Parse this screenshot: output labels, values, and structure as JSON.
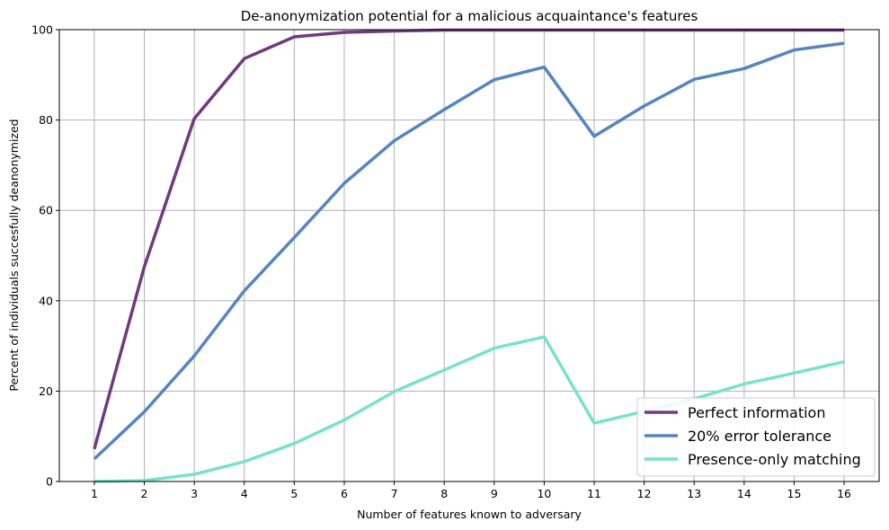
{
  "chart_data": {
    "type": "line",
    "title": "De-anonymization potential for a malicious acquaintance's features",
    "xlabel": "Number of features known to adversary",
    "ylabel": "Percent of individuals succesfully deanonymized",
    "x": [
      1,
      2,
      3,
      4,
      5,
      6,
      7,
      8,
      9,
      10,
      11,
      12,
      13,
      14,
      15,
      16
    ],
    "xlim": [
      0.3,
      16.7
    ],
    "ylim": [
      0,
      100
    ],
    "yticks": [
      0,
      20,
      40,
      60,
      80,
      100
    ],
    "grid": true,
    "legend_position": "lower-right",
    "series": [
      {
        "name": "Perfect information",
        "color": "#6f3a7e",
        "values": [
          7.2,
          47.5,
          80.3,
          93.6,
          98.4,
          99.4,
          99.7,
          99.9,
          99.9,
          99.9,
          99.9,
          99.9,
          99.9,
          99.9,
          99.9,
          99.9
        ]
      },
      {
        "name": "20% error tolerance",
        "color": "#5585c0",
        "values": [
          5.0,
          15.4,
          27.8,
          42.2,
          54.0,
          66.0,
          75.4,
          82.3,
          88.9,
          91.7,
          76.4,
          83.1,
          89.0,
          91.4,
          95.5,
          97.0
        ]
      },
      {
        "name": "Presence-only matching",
        "color": "#78e2c9",
        "values": [
          0.0,
          0.2,
          1.6,
          4.4,
          8.4,
          13.6,
          19.9,
          24.7,
          29.5,
          32.0,
          12.9,
          15.5,
          18.3,
          21.6,
          24.0,
          26.5
        ]
      }
    ]
  }
}
